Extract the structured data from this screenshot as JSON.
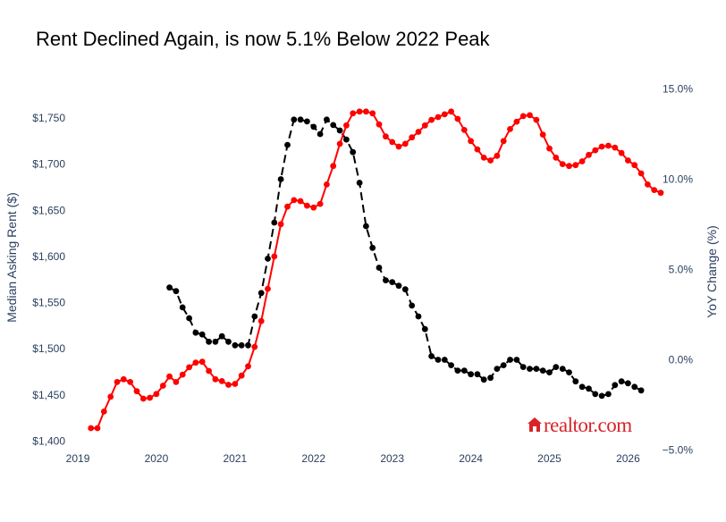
{
  "chart_data": {
    "type": "line",
    "title": "Rent Declined Again, is now 5.1% Below 2022 Peak",
    "xlabel": "",
    "ylabel": "Median Asking Rent ($)",
    "y2label": "YoY Change (%)",
    "xlim": [
      2018.92,
      2026.2
    ],
    "ylim": [
      1400,
      1777
    ],
    "y2lim": [
      -5,
      15
    ],
    "x_ticks": [
      {
        "value": 2019,
        "label": "2019"
      },
      {
        "value": 2020,
        "label": "2020"
      },
      {
        "value": 2021,
        "label": "2021"
      },
      {
        "value": 2022,
        "label": "2022"
      },
      {
        "value": 2023,
        "label": "2023"
      },
      {
        "value": 2024,
        "label": "2024"
      },
      {
        "value": 2025,
        "label": "2025"
      },
      {
        "value": 2026,
        "label": "2026"
      }
    ],
    "y_ticks": [
      {
        "value": 1400,
        "label": "$1,400"
      },
      {
        "value": 1450,
        "label": "$1,450"
      },
      {
        "value": 1500,
        "label": "$1,500"
      },
      {
        "value": 1550,
        "label": "$1,550"
      },
      {
        "value": 1600,
        "label": "$1,600"
      },
      {
        "value": 1650,
        "label": "$1,650"
      },
      {
        "value": 1700,
        "label": "$1,700"
      },
      {
        "value": 1750,
        "label": "$1,750"
      }
    ],
    "y2_ticks": [
      {
        "value": -5,
        "label": "−5.0%"
      },
      {
        "value": 0,
        "label": "0.0%"
      },
      {
        "value": 5,
        "label": "5.0%"
      },
      {
        "value": 10,
        "label": "10.0%"
      },
      {
        "value": 15,
        "label": "15.0%"
      }
    ],
    "grid": false,
    "series": [
      {
        "color": "#ff0000",
        "line_style": "solid",
        "axis": "left",
        "points": [
          [
            "2019-03",
            1414
          ],
          [
            "2019-04",
            1414
          ],
          [
            "2019-05",
            1432
          ],
          [
            "2019-06",
            1448
          ],
          [
            "2019-07",
            1464
          ],
          [
            "2019-08",
            1467
          ],
          [
            "2019-09",
            1464
          ],
          [
            "2019-10",
            1454
          ],
          [
            "2019-11",
            1446
          ],
          [
            "2019-12",
            1447
          ],
          [
            "2020-01",
            1451
          ],
          [
            "2020-02",
            1460
          ],
          [
            "2020-03",
            1470
          ],
          [
            "2020-04",
            1464
          ],
          [
            "2020-05",
            1472
          ],
          [
            "2020-06",
            1480
          ],
          [
            "2020-07",
            1485
          ],
          [
            "2020-08",
            1486
          ],
          [
            "2020-09",
            1476
          ],
          [
            "2020-10",
            1467
          ],
          [
            "2020-11",
            1465
          ],
          [
            "2020-12",
            1461
          ],
          [
            "2021-01",
            1462
          ],
          [
            "2021-02",
            1471
          ],
          [
            "2021-03",
            1481
          ],
          [
            "2021-04",
            1502
          ],
          [
            "2021-05",
            1530
          ],
          [
            "2021-06",
            1565
          ],
          [
            "2021-07",
            1600
          ],
          [
            "2021-08",
            1635
          ],
          [
            "2021-09",
            1654
          ],
          [
            "2021-10",
            1661
          ],
          [
            "2021-11",
            1660
          ],
          [
            "2021-12",
            1655
          ],
          [
            "2022-01",
            1653
          ],
          [
            "2022-02",
            1657
          ],
          [
            "2022-03",
            1678
          ],
          [
            "2022-04",
            1698
          ],
          [
            "2022-05",
            1722
          ],
          [
            "2022-06",
            1742
          ],
          [
            "2022-07",
            1755
          ],
          [
            "2022-08",
            1757
          ],
          [
            "2022-09",
            1757
          ],
          [
            "2022-10",
            1755
          ],
          [
            "2022-11",
            1743
          ],
          [
            "2022-12",
            1730
          ],
          [
            "2023-01",
            1724
          ],
          [
            "2023-02",
            1719
          ],
          [
            "2023-03",
            1722
          ],
          [
            "2023-04",
            1729
          ],
          [
            "2023-05",
            1735
          ],
          [
            "2023-06",
            1742
          ],
          [
            "2023-07",
            1748
          ],
          [
            "2023-08",
            1751
          ],
          [
            "2023-09",
            1754
          ],
          [
            "2023-10",
            1757
          ],
          [
            "2023-11",
            1749
          ],
          [
            "2023-12",
            1737
          ],
          [
            "2024-01",
            1725
          ],
          [
            "2024-02",
            1716
          ],
          [
            "2024-03",
            1707
          ],
          [
            "2024-04",
            1704
          ],
          [
            "2024-05",
            1709
          ],
          [
            "2024-06",
            1725
          ],
          [
            "2024-07",
            1738
          ],
          [
            "2024-08",
            1746
          ],
          [
            "2024-09",
            1752
          ],
          [
            "2024-10",
            1753
          ],
          [
            "2024-11",
            1748
          ],
          [
            "2024-12",
            1732
          ],
          [
            "2025-01",
            1717
          ],
          [
            "2025-02",
            1707
          ],
          [
            "2025-03",
            1700
          ],
          [
            "2025-04",
            1698
          ],
          [
            "2025-05",
            1699
          ],
          [
            "2025-06",
            1703
          ],
          [
            "2025-07",
            1710
          ],
          [
            "2025-08",
            1715
          ],
          [
            "2025-09",
            1719
          ],
          [
            "2025-10",
            1720
          ],
          [
            "2025-11",
            1718
          ],
          [
            "2025-12",
            1712
          ],
          [
            "2026-01",
            1704
          ],
          [
            "2026-02",
            1699
          ],
          [
            "2026-03",
            1690
          ],
          [
            "2026-04",
            1678
          ],
          [
            "2026-05",
            1672
          ],
          [
            "2026-06",
            1669
          ]
        ]
      },
      {
        "color": "#000000",
        "line_style": "dash",
        "axis": "right",
        "points": [
          [
            "2020-03",
            4.0
          ],
          [
            "2020-04",
            3.8
          ],
          [
            "2020-05",
            2.9
          ],
          [
            "2020-06",
            2.3
          ],
          [
            "2020-07",
            1.5
          ],
          [
            "2020-08",
            1.4
          ],
          [
            "2020-09",
            1.0
          ],
          [
            "2020-10",
            1.0
          ],
          [
            "2020-11",
            1.3
          ],
          [
            "2020-12",
            1.0
          ],
          [
            "2021-01",
            0.8
          ],
          [
            "2021-02",
            0.8
          ],
          [
            "2021-03",
            0.8
          ],
          [
            "2021-04",
            2.4
          ],
          [
            "2021-05",
            3.7
          ],
          [
            "2021-06",
            5.6
          ],
          [
            "2021-07",
            7.6
          ],
          [
            "2021-08",
            10.0
          ],
          [
            "2021-09",
            11.9
          ],
          [
            "2021-10",
            13.3
          ],
          [
            "2021-11",
            13.3
          ],
          [
            "2021-12",
            13.2
          ],
          [
            "2022-01",
            12.9
          ],
          [
            "2022-02",
            12.5
          ],
          [
            "2022-03",
            13.3
          ],
          [
            "2022-04",
            13.0
          ],
          [
            "2022-05",
            12.7
          ],
          [
            "2022-06",
            12.2
          ],
          [
            "2022-07",
            11.5
          ],
          [
            "2022-08",
            9.8
          ],
          [
            "2022-09",
            7.4
          ],
          [
            "2022-10",
            6.2
          ],
          [
            "2022-11",
            5.1
          ],
          [
            "2022-12",
            4.4
          ],
          [
            "2023-01",
            4.3
          ],
          [
            "2023-02",
            4.1
          ],
          [
            "2023-03",
            3.9
          ],
          [
            "2023-04",
            3.0
          ],
          [
            "2023-05",
            2.4
          ],
          [
            "2023-06",
            1.7
          ],
          [
            "2023-07",
            0.2
          ],
          [
            "2023-08",
            0.0
          ],
          [
            "2023-09",
            0.0
          ],
          [
            "2023-10",
            -0.3
          ],
          [
            "2023-11",
            -0.6
          ],
          [
            "2023-12",
            -0.6
          ],
          [
            "2024-01",
            -0.8
          ],
          [
            "2024-02",
            -0.8
          ],
          [
            "2024-03",
            -1.1
          ],
          [
            "2024-04",
            -1.0
          ],
          [
            "2024-05",
            -0.5
          ],
          [
            "2024-06",
            -0.3
          ],
          [
            "2024-07",
            0.0
          ],
          [
            "2024-08",
            0.0
          ],
          [
            "2024-09",
            -0.4
          ],
          [
            "2024-10",
            -0.5
          ],
          [
            "2024-11",
            -0.5
          ],
          [
            "2024-12",
            -0.6
          ],
          [
            "2025-01",
            -0.7
          ],
          [
            "2025-02",
            -0.4
          ],
          [
            "2025-03",
            -0.5
          ],
          [
            "2025-04",
            -0.7
          ],
          [
            "2025-05",
            -1.2
          ],
          [
            "2025-06",
            -1.5
          ],
          [
            "2025-07",
            -1.6
          ],
          [
            "2025-08",
            -1.9
          ],
          [
            "2025-09",
            -2.0
          ],
          [
            "2025-10",
            -1.9
          ],
          [
            "2025-11",
            -1.4
          ],
          [
            "2025-12",
            -1.2
          ],
          [
            "2026-01",
            -1.3
          ],
          [
            "2026-02",
            -1.5
          ],
          [
            "2026-03",
            -1.7
          ]
        ]
      }
    ],
    "logo": {
      "text": "realtor.com",
      "color": "#d92228"
    }
  }
}
